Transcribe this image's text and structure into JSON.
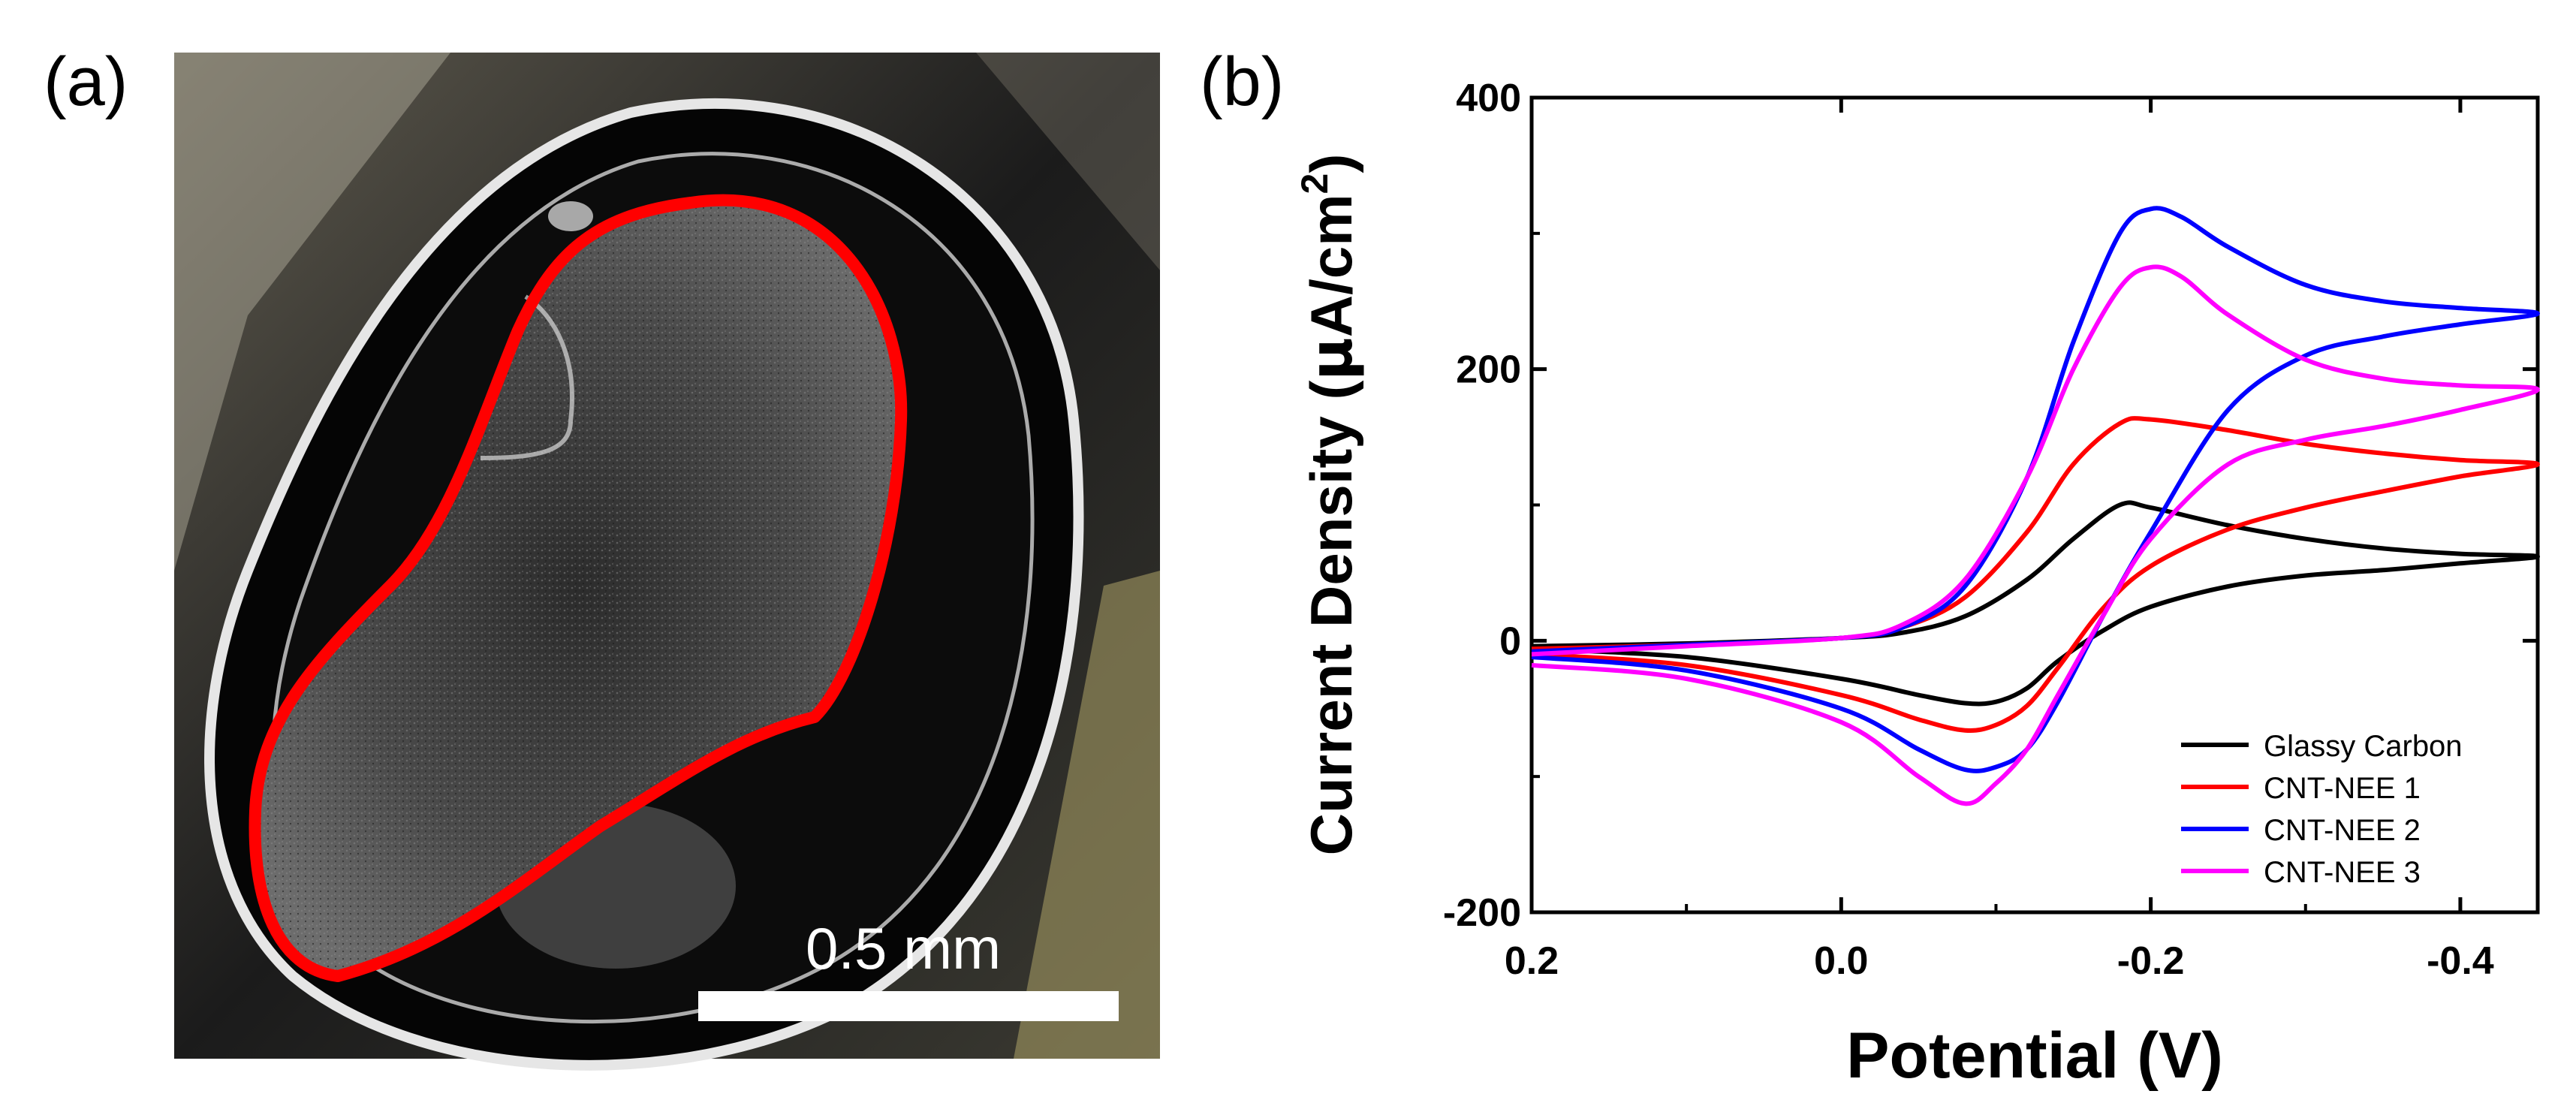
{
  "panel_a": {
    "label": "(a)",
    "scale_bar_label": "0.5 mm"
  },
  "panel_b": {
    "label": "(b)"
  },
  "chart_data": {
    "type": "line",
    "title": "",
    "xlabel": "Potential (V)",
    "ylabel_prefix": "Current Density (",
    "ylabel_mu": "μ",
    "ylabel_unit": "A/cm",
    "ylabel_sup": "2",
    "ylabel_suffix": ")",
    "xlim": [
      0.2,
      -0.45
    ],
    "ylim": [
      -200,
      400
    ],
    "x_reversed": true,
    "xticks": [
      0.2,
      0.0,
      -0.2,
      -0.4
    ],
    "xtick_labels": [
      "0.2",
      "0.0",
      "-0.2",
      "-0.4"
    ],
    "yticks": [
      -200,
      0,
      200,
      400
    ],
    "ytick_labels": [
      "-200",
      "0",
      "200",
      "400"
    ],
    "grid": false,
    "legend_position": "bottom-right",
    "series": [
      {
        "name": "Glassy Carbon",
        "color": "#000000",
        "forward": [
          [
            0.2,
            -4
          ],
          [
            0.1,
            -2
          ],
          [
            0.0,
            2
          ],
          [
            -0.04,
            6
          ],
          [
            -0.08,
            18
          ],
          [
            -0.12,
            45
          ],
          [
            -0.15,
            75
          ],
          [
            -0.18,
            100
          ],
          [
            -0.2,
            98
          ],
          [
            -0.25,
            85
          ],
          [
            -0.3,
            75
          ],
          [
            -0.35,
            68
          ],
          [
            -0.4,
            64
          ],
          [
            -0.45,
            62
          ]
        ],
        "reverse": [
          [
            -0.45,
            62
          ],
          [
            -0.4,
            57
          ],
          [
            -0.35,
            52
          ],
          [
            -0.3,
            48
          ],
          [
            -0.25,
            40
          ],
          [
            -0.2,
            25
          ],
          [
            -0.17,
            8
          ],
          [
            -0.14,
            -15
          ],
          [
            -0.12,
            -35
          ],
          [
            -0.1,
            -45
          ],
          [
            -0.08,
            -46
          ],
          [
            -0.05,
            -40
          ],
          [
            0.0,
            -28
          ],
          [
            0.1,
            -12
          ],
          [
            0.2,
            -6
          ]
        ]
      },
      {
        "name": "CNT-NEE 1",
        "color": "#ff0000",
        "forward": [
          [
            0.2,
            -6
          ],
          [
            0.1,
            -3
          ],
          [
            0.0,
            2
          ],
          [
            -0.04,
            10
          ],
          [
            -0.08,
            32
          ],
          [
            -0.12,
            80
          ],
          [
            -0.15,
            130
          ],
          [
            -0.18,
            160
          ],
          [
            -0.2,
            163
          ],
          [
            -0.25,
            155
          ],
          [
            -0.3,
            145
          ],
          [
            -0.35,
            138
          ],
          [
            -0.4,
            133
          ],
          [
            -0.45,
            130
          ]
        ],
        "reverse": [
          [
            -0.45,
            130
          ],
          [
            -0.4,
            121
          ],
          [
            -0.35,
            110
          ],
          [
            -0.3,
            98
          ],
          [
            -0.25,
            82
          ],
          [
            -0.2,
            55
          ],
          [
            -0.17,
            25
          ],
          [
            -0.14,
            -20
          ],
          [
            -0.12,
            -48
          ],
          [
            -0.1,
            -62
          ],
          [
            -0.08,
            -66
          ],
          [
            -0.05,
            -58
          ],
          [
            0.0,
            -40
          ],
          [
            0.1,
            -18
          ],
          [
            0.2,
            -10
          ]
        ]
      },
      {
        "name": "CNT-NEE 2",
        "color": "#0000ff",
        "forward": [
          [
            0.2,
            -8
          ],
          [
            0.1,
            -3
          ],
          [
            0.0,
            2
          ],
          [
            -0.04,
            10
          ],
          [
            -0.08,
            40
          ],
          [
            -0.12,
            120
          ],
          [
            -0.15,
            220
          ],
          [
            -0.18,
            300
          ],
          [
            -0.2,
            318
          ],
          [
            -0.22,
            312
          ],
          [
            -0.25,
            290
          ],
          [
            -0.3,
            262
          ],
          [
            -0.35,
            250
          ],
          [
            -0.4,
            245
          ],
          [
            -0.45,
            241
          ]
        ],
        "reverse": [
          [
            -0.45,
            241
          ],
          [
            -0.4,
            233
          ],
          [
            -0.35,
            224
          ],
          [
            -0.3,
            210
          ],
          [
            -0.25,
            170
          ],
          [
            -0.2,
            80
          ],
          [
            -0.17,
            20
          ],
          [
            -0.14,
            -45
          ],
          [
            -0.12,
            -80
          ],
          [
            -0.1,
            -93
          ],
          [
            -0.08,
            -95
          ],
          [
            -0.05,
            -80
          ],
          [
            0.0,
            -50
          ],
          [
            0.1,
            -22
          ],
          [
            0.2,
            -12
          ]
        ]
      },
      {
        "name": "CNT-NEE 3",
        "color": "#ff00ff",
        "forward": [
          [
            0.2,
            -10
          ],
          [
            0.1,
            -4
          ],
          [
            0.0,
            2
          ],
          [
            -0.04,
            12
          ],
          [
            -0.08,
            45
          ],
          [
            -0.12,
            120
          ],
          [
            -0.15,
            200
          ],
          [
            -0.18,
            260
          ],
          [
            -0.2,
            275
          ],
          [
            -0.22,
            268
          ],
          [
            -0.25,
            240
          ],
          [
            -0.3,
            207
          ],
          [
            -0.35,
            193
          ],
          [
            -0.4,
            188
          ],
          [
            -0.45,
            185
          ]
        ],
        "reverse": [
          [
            -0.45,
            185
          ],
          [
            -0.4,
            170
          ],
          [
            -0.35,
            158
          ],
          [
            -0.3,
            148
          ],
          [
            -0.25,
            130
          ],
          [
            -0.2,
            75
          ],
          [
            -0.17,
            20
          ],
          [
            -0.14,
            -40
          ],
          [
            -0.12,
            -80
          ],
          [
            -0.1,
            -105
          ],
          [
            -0.08,
            -120
          ],
          [
            -0.05,
            -100
          ],
          [
            0.0,
            -60
          ],
          [
            0.1,
            -28
          ],
          [
            0.2,
            -18
          ]
        ]
      }
    ]
  }
}
